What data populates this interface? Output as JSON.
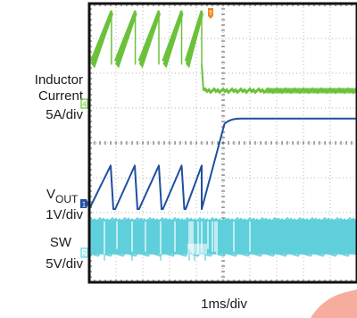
{
  "chart_data": {
    "type": "line",
    "title": "",
    "xlabel": "1ms/div",
    "channel_labels": {
      "inductor": [
        "Inductor",
        "Current",
        "5A/div"
      ],
      "vout_main": "V",
      "vout_sub": "OUT",
      "vout_scale": "1V/div",
      "sw": [
        "SW",
        "5V/div"
      ]
    },
    "markers": {
      "trigger": "T",
      "ch4": "4",
      "ch1": "1",
      "ch2": "2"
    },
    "grid": true,
    "x_divisions": 10,
    "y_divisions": 8,
    "xlim_div": [
      0,
      10
    ],
    "ylim_div": [
      0,
      8
    ],
    "colors": {
      "inductor": "#6cc13b",
      "vout": "#1f4fa0",
      "sw": "#5fcfdb",
      "grid": "#9a9a9a",
      "frame": "#111111",
      "trigger": "#f08a24",
      "watermark": "#f6a493"
    },
    "series": [
      {
        "name": "Inductor Current",
        "unit_per_div": "5A/div",
        "ramps_div": [
          [
            0.07,
            0.83
          ],
          [
            0.97,
            1.72
          ],
          [
            1.86,
            2.6
          ],
          [
            2.75,
            3.45
          ],
          [
            3.6,
            4.2
          ]
        ],
        "ramp_low_div": 6.35,
        "ramp_high_div": 7.8,
        "settled_div": 5.5
      },
      {
        "name": "VOUT",
        "unit_per_div": "1V/div",
        "sawtooth_div": [
          [
            0.0,
            0.8
          ],
          [
            0.97,
            1.7
          ],
          [
            1.86,
            2.6
          ],
          [
            2.75,
            3.45
          ],
          [
            3.6,
            4.2
          ]
        ],
        "saw_low_div": 2.1,
        "saw_high_div": 3.35,
        "final_ramp_div": [
          4.2,
          5.25
        ],
        "final_level_div": 4.7
      },
      {
        "name": "SW",
        "unit_per_div": "5V/div",
        "high_div": 1.8,
        "low_div": 0.8,
        "end_div": 6.0
      }
    ]
  }
}
